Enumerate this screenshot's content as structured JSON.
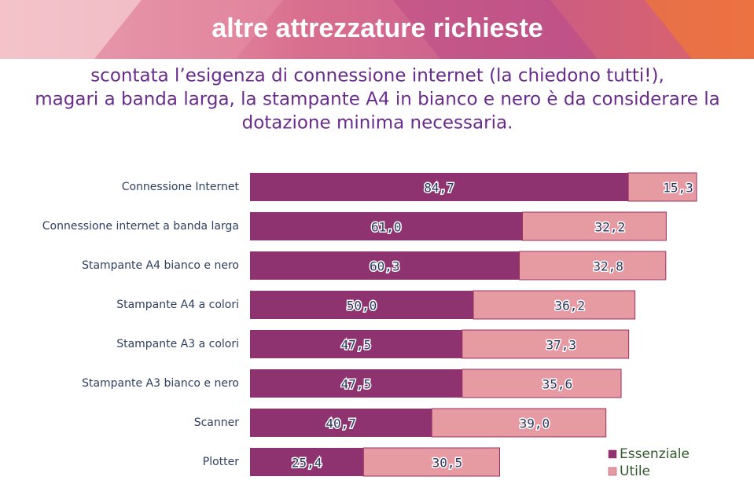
{
  "title": "altre attrezzature richieste",
  "subtitle": [
    "scontata l’esigenza di connessione internet (la chiedono tutti!),",
    "magari a banda larga, la stampante A4 in bianco e nero è da considerare la",
    "dotazione minima necessaria."
  ],
  "chart_data": {
    "type": "stacked-barh",
    "categories": [
      "Connessione Internet",
      "Connessione internet a banda larga",
      "Stampante A4 bianco e nero",
      "Stampante A4 a colori",
      "Stampante A3 a colori",
      "Stampante A3 bianco e nero",
      "Scanner",
      "Plotter"
    ],
    "series": [
      {
        "name": "Essenziale",
        "color": "#8e3370",
        "values": [
          84.7,
          61.0,
          60.3,
          50.0,
          47.5,
          47.5,
          40.7,
          25.4
        ],
        "value_labels": [
          "84,7",
          "61,0",
          "60,3",
          "50,0",
          "47,5",
          "47,5",
          "40,7",
          "25,4"
        ]
      },
      {
        "name": "Utile",
        "color": "#e69aa2",
        "values": [
          15.3,
          32.2,
          32.8,
          36.2,
          37.3,
          35.6,
          39.0,
          30.5
        ],
        "value_labels": [
          "15,3",
          "32,2",
          "32,8",
          "36,2",
          "37,3",
          "35,6",
          "39,0",
          "30,5"
        ]
      }
    ],
    "xlim": [
      0,
      100
    ],
    "legend": "bottom-right"
  }
}
